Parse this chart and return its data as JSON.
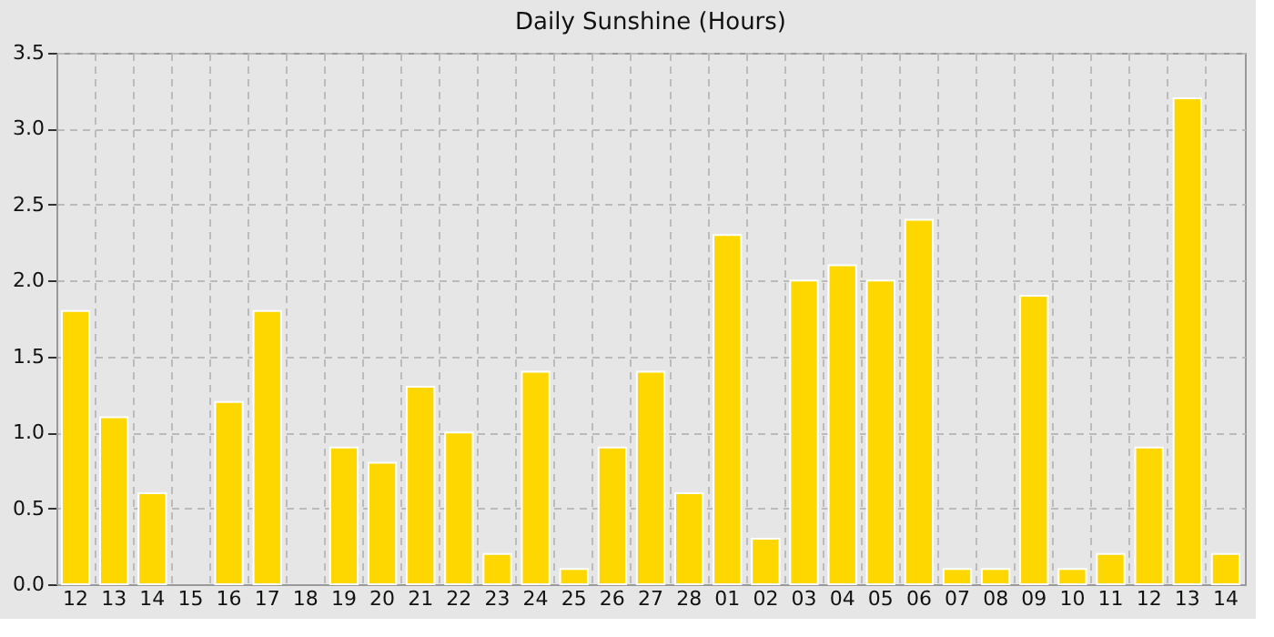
{
  "chart_data": {
    "type": "bar",
    "title": "Daily Sunshine (Hours)",
    "categories": [
      "12",
      "13",
      "14",
      "15",
      "16",
      "17",
      "18",
      "19",
      "20",
      "21",
      "22",
      "23",
      "24",
      "25",
      "26",
      "27",
      "28",
      "01",
      "02",
      "03",
      "04",
      "05",
      "06",
      "07",
      "08",
      "09",
      "10",
      "11",
      "12",
      "13",
      "14"
    ],
    "values": [
      1.8,
      1.1,
      0.6,
      0,
      1.2,
      1.8,
      0,
      0.9,
      0.8,
      1.3,
      1.0,
      0.2,
      1.4,
      0.1,
      0.9,
      1.4,
      0.6,
      2.3,
      0.3,
      2.0,
      2.1,
      2.0,
      2.4,
      0.1,
      0.1,
      1.9,
      0.1,
      0.2,
      0.9,
      3.2,
      0.2
    ],
    "color": "#ffd700",
    "ylim": [
      0,
      3.5
    ],
    "yticks": [
      {
        "value": 0,
        "label": "0.0"
      },
      0.5,
      {
        "value": 1,
        "label": "1.0"
      },
      1.5,
      {
        "value": 2,
        "label": "2.0"
      },
      2.5,
      {
        "value": 3,
        "label": "3.0"
      },
      3.5
    ],
    "grid": true
  }
}
